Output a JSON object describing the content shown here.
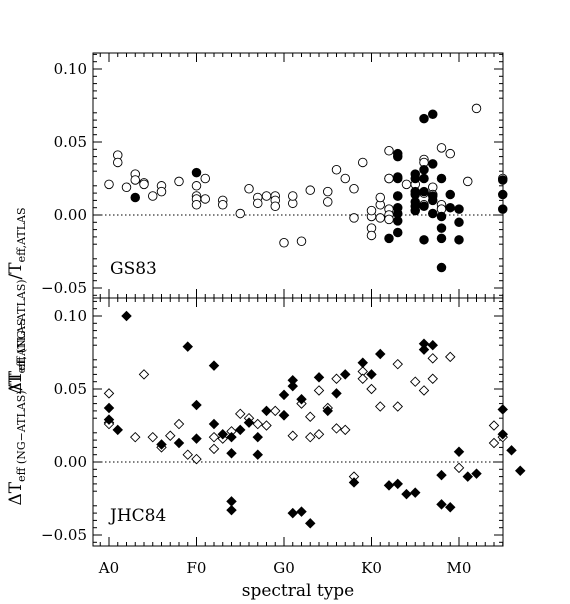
{
  "chart_data": {
    "type": "scatter",
    "xlabel": "spectral type",
    "ylabel_main": "ΔT",
    "ylabel_sub1": "eff (NG−ATLAS)",
    "ylabel_mid": "/T",
    "ylabel_sub2": "eff,ATLAS",
    "x_categories": [
      "A0",
      "F0",
      "G0",
      "K0",
      "M0"
    ],
    "xlim": [
      0,
      45
    ],
    "x_tick_positions": [
      0,
      10,
      20,
      30,
      40
    ],
    "panels": [
      {
        "label": "GS83",
        "ylim": [
          -0.06,
          0.11
        ],
        "yticks": [
          -0.05,
          0.0,
          0.05,
          0.1
        ],
        "ytick_labels": [
          "−0.05",
          "0.00",
          "0.05",
          "0.10"
        ],
        "marker": "circle",
        "series": [
          {
            "filled": false,
            "points": [
              [
                0,
                0.021
              ],
              [
                1,
                0.041
              ],
              [
                1,
                0.036
              ],
              [
                2,
                0.019
              ],
              [
                3,
                0.028
              ],
              [
                3,
                0.024
              ],
              [
                4,
                0.022
              ],
              [
                4,
                0.021
              ],
              [
                5,
                0.013
              ],
              [
                6,
                0.02
              ],
              [
                6,
                0.016
              ],
              [
                8,
                0.023
              ],
              [
                10,
                0.02
              ],
              [
                10,
                0.013
              ],
              [
                10,
                0.011
              ],
              [
                10,
                0.007
              ],
              [
                11,
                0.025
              ],
              [
                11,
                0.011
              ],
              [
                13,
                0.01
              ],
              [
                13,
                0.007
              ],
              [
                15,
                0.001
              ],
              [
                16,
                0.018
              ],
              [
                17,
                0.012
              ],
              [
                17,
                0.008
              ],
              [
                18,
                0.013
              ],
              [
                19,
                0.013
              ],
              [
                19,
                0.01
              ],
              [
                19,
                0.006
              ],
              [
                20,
                -0.019
              ],
              [
                21,
                0.008
              ],
              [
                21,
                0.013
              ],
              [
                22,
                -0.018
              ],
              [
                23,
                0.017
              ],
              [
                25,
                0.009
              ],
              [
                25,
                0.016
              ],
              [
                26,
                0.031
              ],
              [
                27,
                0.025
              ],
              [
                28,
                0.018
              ],
              [
                28,
                -0.002
              ],
              [
                29,
                0.036
              ],
              [
                30,
                -0.001
              ],
              [
                30,
                -0.009
              ],
              [
                30,
                -0.014
              ],
              [
                30,
                0.003
              ],
              [
                31,
                -0.002
              ],
              [
                31,
                0.007
              ],
              [
                31,
                0.012
              ],
              [
                32,
                0.044
              ],
              [
                32,
                0.025
              ],
              [
                32,
                0.025
              ],
              [
                32,
                0.004
              ],
              [
                32,
                0.0
              ],
              [
                32,
                -0.003
              ],
              [
                33,
                0.013
              ],
              [
                34,
                0.021
              ],
              [
                35,
                0.021
              ],
              [
                36,
                0.038
              ],
              [
                36,
                0.036
              ],
              [
                36,
                0.015
              ],
              [
                36,
                0.007
              ],
              [
                37,
                0.019
              ],
              [
                37,
                0.014
              ],
              [
                38,
                0.046
              ],
              [
                38,
                0.007
              ],
              [
                38,
                0.004
              ],
              [
                39,
                0.042
              ],
              [
                41,
                0.023
              ],
              [
                42,
                0.073
              ],
              [
                45,
                0.025
              ]
            ]
          },
          {
            "filled": true,
            "points": [
              [
                3,
                0.012
              ],
              [
                10,
                0.029
              ],
              [
                32,
                -0.016
              ],
              [
                33,
                0.042
              ],
              [
                33,
                0.04
              ],
              [
                33,
                0.026
              ],
              [
                33,
                0.025
              ],
              [
                33,
                0.013
              ],
              [
                33,
                0.005
              ],
              [
                33,
                0.001
              ],
              [
                33,
                -0.004
              ],
              [
                33,
                -0.012
              ],
              [
                35,
                0.028
              ],
              [
                35,
                0.025
              ],
              [
                35,
                0.016
              ],
              [
                35,
                0.014
              ],
              [
                35,
                0.009
              ],
              [
                35,
                0.006
              ],
              [
                35,
                0.003
              ],
              [
                36,
                0.066
              ],
              [
                36,
                0.031
              ],
              [
                36,
                0.025
              ],
              [
                36,
                0.016
              ],
              [
                36,
                0.006
              ],
              [
                36,
                -0.017
              ],
              [
                37,
                0.069
              ],
              [
                37,
                0.035
              ],
              [
                37,
                0.013
              ],
              [
                37,
                0.01
              ],
              [
                37,
                0.001
              ],
              [
                38,
                0.025
              ],
              [
                38,
                -0.001
              ],
              [
                38,
                -0.009
              ],
              [
                38,
                -0.016
              ],
              [
                38,
                -0.036
              ],
              [
                39,
                0.014
              ],
              [
                39,
                0.005
              ],
              [
                40,
                0.004
              ],
              [
                40,
                -0.005
              ],
              [
                40,
                -0.017
              ],
              [
                45,
                0.024
              ],
              [
                45,
                0.014
              ],
              [
                45,
                0.004
              ]
            ]
          }
        ]
      },
      {
        "label": "JHC84",
        "ylim": [
          -0.06,
          0.11
        ],
        "yticks": [
          -0.05,
          0.0,
          0.05,
          0.1
        ],
        "ytick_labels": [
          "−0.05",
          "0.00",
          "0.05",
          "0.10"
        ],
        "marker": "diamond",
        "series": [
          {
            "filled": false,
            "points": [
              [
                0,
                0.047
              ],
              [
                0,
                0.027
              ],
              [
                0,
                0.026
              ],
              [
                3,
                0.017
              ],
              [
                4,
                0.06
              ],
              [
                5,
                0.017
              ],
              [
                6,
                0.01
              ],
              [
                7,
                0.018
              ],
              [
                8,
                0.026
              ],
              [
                9,
                0.005
              ],
              [
                10,
                0.002
              ],
              [
                12,
                0.017
              ],
              [
                12,
                0.009
              ],
              [
                13,
                0.016
              ],
              [
                14,
                0.021
              ],
              [
                15,
                0.033
              ],
              [
                16,
                0.03
              ],
              [
                17,
                0.026
              ],
              [
                18,
                0.025
              ],
              [
                19,
                0.035
              ],
              [
                20,
                0.032
              ],
              [
                21,
                0.018
              ],
              [
                22,
                0.04
              ],
              [
                23,
                0.031
              ],
              [
                23,
                0.017
              ],
              [
                24,
                0.019
              ],
              [
                24,
                0.049
              ],
              [
                25,
                0.037
              ],
              [
                26,
                0.023
              ],
              [
                26,
                0.057
              ],
              [
                27,
                0.022
              ],
              [
                28,
                -0.01
              ],
              [
                29,
                0.062
              ],
              [
                29,
                0.057
              ],
              [
                30,
                0.05
              ],
              [
                31,
                0.038
              ],
              [
                33,
                0.067
              ],
              [
                33,
                0.038
              ],
              [
                35,
                0.055
              ],
              [
                36,
                0.049
              ],
              [
                37,
                0.057
              ],
              [
                37,
                0.071
              ],
              [
                39,
                0.072
              ],
              [
                40,
                -0.004
              ],
              [
                44,
                0.013
              ],
              [
                44,
                0.025
              ],
              [
                45,
                0.017
              ]
            ]
          },
          {
            "filled": true,
            "points": [
              [
                0,
                0.037
              ],
              [
                0,
                0.029
              ],
              [
                1,
                0.022
              ],
              [
                2,
                0.1
              ],
              [
                6,
                0.012
              ],
              [
                8,
                0.013
              ],
              [
                9,
                0.079
              ],
              [
                10,
                0.039
              ],
              [
                10,
                0.016
              ],
              [
                12,
                0.066
              ],
              [
                12,
                0.026
              ],
              [
                13,
                0.019
              ],
              [
                14,
                0.017
              ],
              [
                14,
                0.006
              ],
              [
                14,
                -0.027
              ],
              [
                14,
                -0.033
              ],
              [
                15,
                0.022
              ],
              [
                16,
                0.027
              ],
              [
                17,
                0.017
              ],
              [
                17,
                0.005
              ],
              [
                18,
                0.035
              ],
              [
                20,
                0.046
              ],
              [
                20,
                0.032
              ],
              [
                21,
                0.056
              ],
              [
                21,
                0.052
              ],
              [
                21,
                -0.035
              ],
              [
                22,
                -0.034
              ],
              [
                22,
                0.043
              ],
              [
                23,
                -0.042
              ],
              [
                24,
                0.058
              ],
              [
                25,
                0.035
              ],
              [
                26,
                0.047
              ],
              [
                27,
                0.06
              ],
              [
                28,
                -0.014
              ],
              [
                29,
                0.068
              ],
              [
                30,
                0.06
              ],
              [
                31,
                0.074
              ],
              [
                32,
                -0.016
              ],
              [
                33,
                -0.015
              ],
              [
                34,
                -0.022
              ],
              [
                35,
                -0.021
              ],
              [
                36,
                0.081
              ],
              [
                36,
                0.077
              ],
              [
                37,
                0.08
              ],
              [
                38,
                -0.029
              ],
              [
                38,
                -0.009
              ],
              [
                39,
                -0.031
              ],
              [
                40,
                0.007
              ],
              [
                41,
                -0.01
              ],
              [
                42,
                -0.008
              ],
              [
                45,
                0.036
              ],
              [
                45,
                0.019
              ],
              [
                46,
                0.008
              ],
              [
                47,
                -0.006
              ]
            ]
          }
        ]
      }
    ]
  }
}
